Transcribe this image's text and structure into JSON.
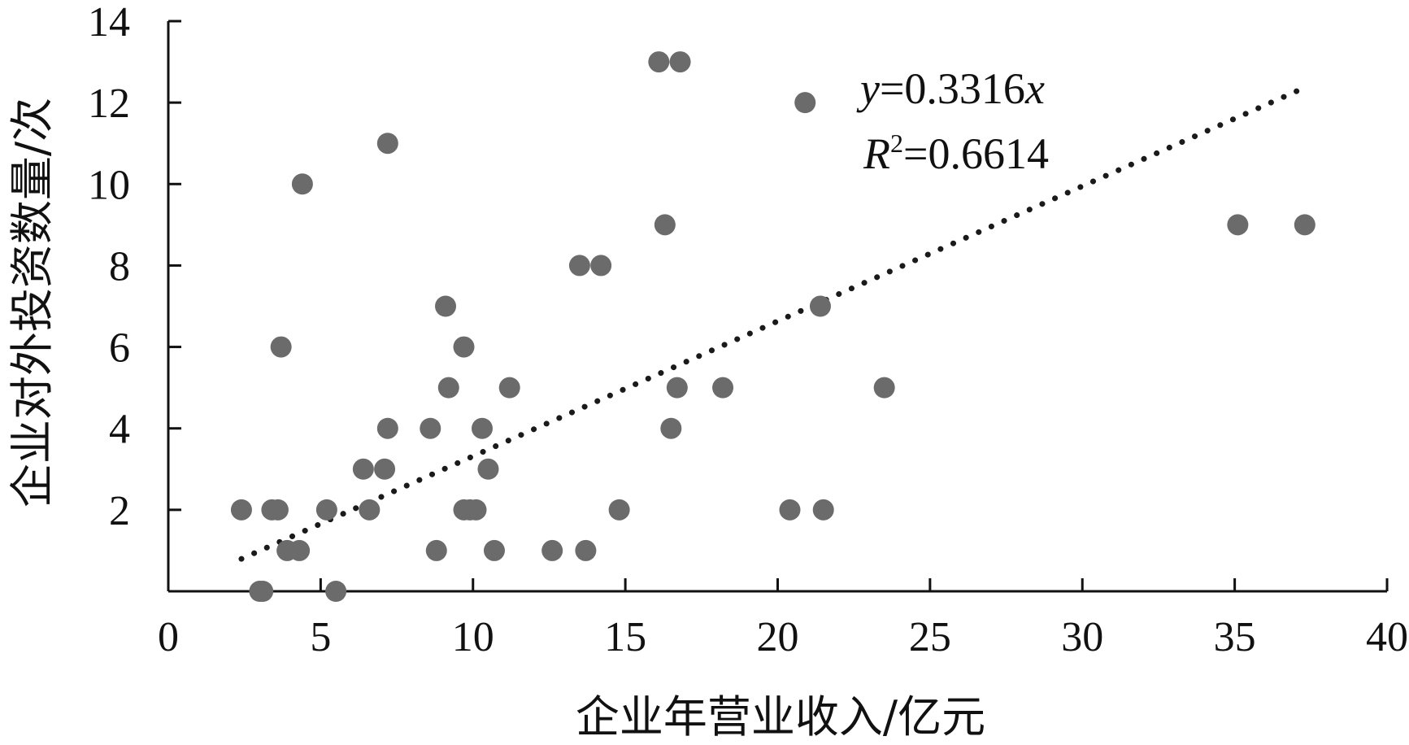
{
  "chart_data": {
    "type": "scatter",
    "title": "",
    "xlabel": "企业年营业收入/亿元",
    "ylabel": "企业对外投资数量/次",
    "xlim": [
      0,
      40
    ],
    "ylim": [
      0,
      14
    ],
    "xticks": [
      0,
      5,
      10,
      15,
      20,
      25,
      30,
      35,
      40
    ],
    "yticks": [
      2,
      4,
      6,
      8,
      10,
      12,
      14
    ],
    "grid": false,
    "legend": "none",
    "point_color": "#6b6b6b",
    "trendline": {
      "style": "dotted",
      "slope": 0.3316,
      "x_range": [
        2.4,
        37.3
      ],
      "equation_y": "y",
      "equation_rest": "=0.3316",
      "equation_x": "x",
      "r2_r": "R",
      "r2_sup": "2",
      "r2_rest": "=0.6614"
    },
    "series": [
      {
        "points": [
          [
            2.4,
            2
          ],
          [
            3.0,
            0
          ],
          [
            3.1,
            0
          ],
          [
            3.4,
            2
          ],
          [
            3.6,
            2
          ],
          [
            3.7,
            6
          ],
          [
            3.9,
            1
          ],
          [
            4.3,
            1
          ],
          [
            4.4,
            10
          ],
          [
            5.2,
            2
          ],
          [
            5.5,
            0
          ],
          [
            6.4,
            3
          ],
          [
            6.6,
            2
          ],
          [
            7.1,
            3
          ],
          [
            7.2,
            11
          ],
          [
            7.2,
            4
          ],
          [
            8.6,
            4
          ],
          [
            8.8,
            1
          ],
          [
            9.1,
            7
          ],
          [
            9.2,
            5
          ],
          [
            9.7,
            6
          ],
          [
            9.7,
            2
          ],
          [
            9.9,
            2
          ],
          [
            10.1,
            2
          ],
          [
            10.3,
            4
          ],
          [
            10.5,
            3
          ],
          [
            10.7,
            1
          ],
          [
            11.2,
            5
          ],
          [
            12.6,
            1
          ],
          [
            13.5,
            8
          ],
          [
            13.7,
            1
          ],
          [
            14.2,
            8
          ],
          [
            14.8,
            2
          ],
          [
            16.1,
            13
          ],
          [
            16.3,
            9
          ],
          [
            16.5,
            4
          ],
          [
            16.7,
            5
          ],
          [
            16.8,
            13
          ],
          [
            18.2,
            5
          ],
          [
            20.4,
            2
          ],
          [
            20.9,
            12
          ],
          [
            21.4,
            7
          ],
          [
            21.5,
            2
          ],
          [
            23.5,
            5
          ],
          [
            35.1,
            9
          ],
          [
            37.3,
            9
          ]
        ]
      }
    ]
  }
}
